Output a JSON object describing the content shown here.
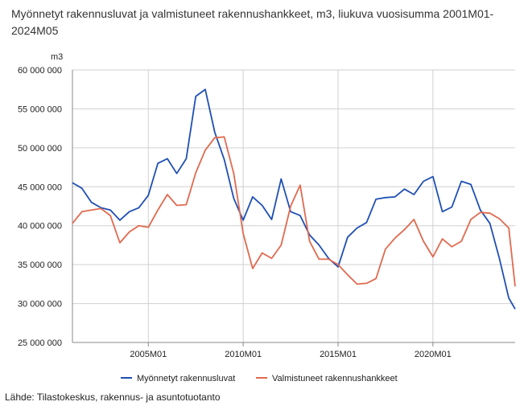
{
  "title": "Myönnetyt rakennusluvat ja valmistuneet rakennushankkeet, m3, liukuva vuosisumma 2001M01-2024M05",
  "source": "Lähde: Tilastokeskus, rakennus- ja asuntotuotanto",
  "chart_data": {
    "type": "line",
    "title": "Myönnetyt rakennusluvat ja valmistuneet rakennushankkeet, m3, liukuva vuosisumma 2001M01-2024M05",
    "ylabel": "m3",
    "xlabel": "",
    "ylim": [
      25000000,
      60000000
    ],
    "yticks": [
      25000000,
      30000000,
      35000000,
      40000000,
      45000000,
      50000000,
      55000000,
      60000000
    ],
    "ytick_labels": [
      "25 000 000",
      "30 000 000",
      "35 000 000",
      "40 000 000",
      "45 000 000",
      "50 000 000",
      "55 000 000",
      "60 000 000"
    ],
    "xlim": [
      "2001M01",
      "2024M05"
    ],
    "xticks": [
      "2005M01",
      "2010M01",
      "2015M01",
      "2020M01"
    ],
    "grid": true,
    "legend_position": "bottom",
    "x": [
      "2001M01",
      "2001M07",
      "2002M01",
      "2002M07",
      "2003M01",
      "2003M07",
      "2004M01",
      "2004M07",
      "2005M01",
      "2005M07",
      "2006M01",
      "2006M07",
      "2007M01",
      "2007M07",
      "2008M01",
      "2008M07",
      "2009M01",
      "2009M07",
      "2010M01",
      "2010M07",
      "2011M01",
      "2011M07",
      "2012M01",
      "2012M07",
      "2013M01",
      "2013M07",
      "2014M01",
      "2014M07",
      "2015M01",
      "2015M07",
      "2016M01",
      "2016M07",
      "2017M01",
      "2017M07",
      "2018M01",
      "2018M07",
      "2019M01",
      "2019M07",
      "2020M01",
      "2020M07",
      "2021M01",
      "2021M07",
      "2022M01",
      "2022M07",
      "2023M01",
      "2023M07",
      "2024M01",
      "2024M05"
    ],
    "series": [
      {
        "name": "Myönnetyt rakennusluvat",
        "color": "#1f4fb4",
        "values": [
          45500000,
          44800000,
          43000000,
          42300000,
          42000000,
          40700000,
          41800000,
          42300000,
          43900000,
          48000000,
          48600000,
          46700000,
          48600000,
          56600000,
          57500000,
          52000000,
          48500000,
          43500000,
          40700000,
          43700000,
          42600000,
          40800000,
          46000000,
          41800000,
          41300000,
          38800000,
          37500000,
          35800000,
          34700000,
          38500000,
          39700000,
          40400000,
          43400000,
          43600000,
          43700000,
          44700000,
          44000000,
          45700000,
          46300000,
          41800000,
          42400000,
          45700000,
          45300000,
          42000000,
          40300000,
          35800000,
          30700000,
          29300000
        ]
      },
      {
        "name": "Valmistuneet rakennushankkeet",
        "color": "#e06a4f",
        "values": [
          40300000,
          41800000,
          42000000,
          42200000,
          41300000,
          37800000,
          39200000,
          40000000,
          39800000,
          42000000,
          44000000,
          42600000,
          42700000,
          46800000,
          49700000,
          51300000,
          51400000,
          46700000,
          39000000,
          34500000,
          36500000,
          35800000,
          37500000,
          42500000,
          45200000,
          38000000,
          35700000,
          35700000,
          35000000,
          33700000,
          32500000,
          32600000,
          33200000,
          37000000,
          38400000,
          39500000,
          40800000,
          38000000,
          36000000,
          38300000,
          37300000,
          38000000,
          40800000,
          41700000,
          41600000,
          40900000,
          39700000,
          32200000
        ]
      }
    ]
  }
}
